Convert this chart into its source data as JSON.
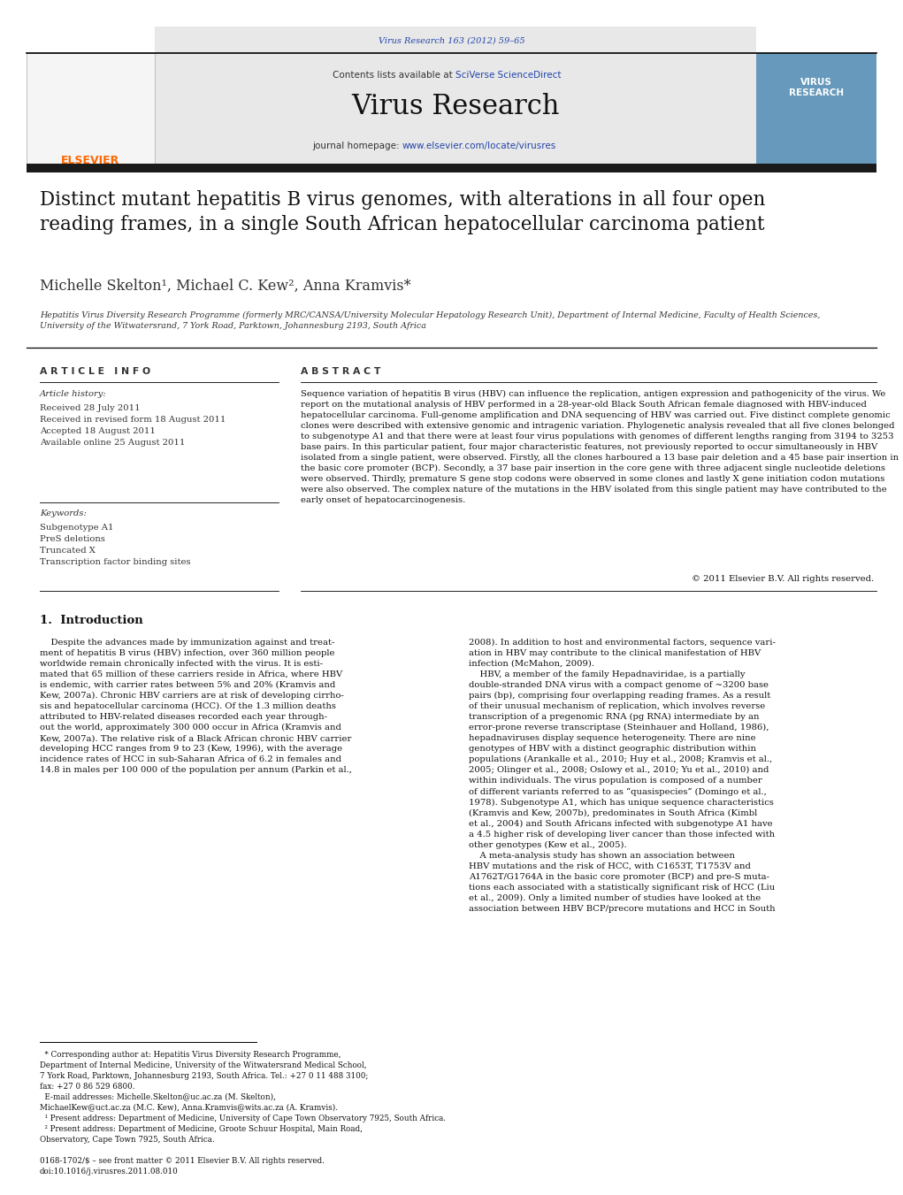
{
  "page_width": 10.21,
  "page_height": 13.51,
  "bg_color": "#ffffff",
  "journal_ref": "Virus Research 163 (2012) 59–65",
  "journal_ref_color": "#2244aa",
  "header_bg": "#e8e8e8",
  "contents_text": "Contents lists available at ",
  "sciverse_text": "SciVerse ScienceDirect",
  "sciverse_color": "#2244aa",
  "journal_name": "Virus Research",
  "journal_homepage_text": "journal homepage: ",
  "journal_url": "www.elsevier.com/locate/virusres",
  "journal_url_color": "#2244aa",
  "elsevier_color": "#FF6600",
  "dark_bar_color": "#1a1a1a",
  "title": "Distinct mutant hepatitis B virus genomes, with alterations in all four open\nreading frames, in a single South African hepatocellular carcinoma patient",
  "authors": "Michelle Skelton¹, Michael C. Kew², Anna Kramvis*",
  "affiliation": "Hepatitis Virus Diversity Research Programme (formerly MRC/CANSA/University Molecular Hepatology Research Unit), Department of Internal Medicine, Faculty of Health Sciences,\nUniversity of the Witwatersrand, 7 York Road, Parktown, Johannesburg 2193, South Africa",
  "article_info_header": "A R T I C L E   I N F O",
  "abstract_header": "A B S T R A C T",
  "article_history_label": "Article history:",
  "article_history": "Received 28 July 2011\nReceived in revised form 18 August 2011\nAccepted 18 August 2011\nAvailable online 25 August 2011",
  "keywords_label": "Keywords:",
  "keywords": "Subgenotype A1\nPreS deletions\nTruncated X\nTranscription factor binding sites",
  "abstract_text": "Sequence variation of hepatitis B virus (HBV) can influence the replication, antigen expression and pathogenicity of the virus. We report on the mutational analysis of HBV performed in a 28-year-old Black South African female diagnosed with HBV-induced hepatocellular carcinoma. Full-genome amplification and DNA sequencing of HBV was carried out. Five distinct complete genomic clones were described with extensive genomic and intragenic variation. Phylogenetic analysis revealed that all five clones belonged to subgenotype A1 and that there were at least four virus populations with genomes of different lengths ranging from 3194 to 3253 base pairs. In this particular patient, four major characteristic features, not previously reported to occur simultaneously in HBV isolated from a single patient, were observed. Firstly, all the clones harboured a 13 base pair deletion and a 45 base pair insertion in the basic core promoter (BCP). Secondly, a 37 base pair insertion in the core gene with three adjacent single nucleotide deletions were observed. Thirdly, premature S gene stop codons were observed in some clones and lastly X gene initiation codon mutations were also observed. The complex nature of the mutations in the HBV isolated from this single patient may have contributed to the early onset of hepatocarcinogenesis.",
  "copyright": "© 2011 Elsevier B.V. All rights reserved.",
  "section1_title": "1.  Introduction",
  "section1_col1": "    Despite the advances made by immunization against and treat-\nment of hepatitis B virus (HBV) infection, over 360 million people\nworldwide remain chronically infected with the virus. It is esti-\nmated that 65 million of these carriers reside in Africa, where HBV\nis endemic, with carrier rates between 5% and 20% (Kramvis and\nKew, 2007a). Chronic HBV carriers are at risk of developing cirrho-\nsis and hepatocellular carcinoma (HCC). Of the 1.3 million deaths\nattributed to HBV-related diseases recorded each year through-\nout the world, approximately 300 000 occur in Africa (Kramvis and\nKew, 2007a). The relative risk of a Black African chronic HBV carrier\ndeveloping HCC ranges from 9 to 23 (Kew, 1996), with the average\nincidence rates of HCC in sub-Saharan Africa of 6.2 in females and\n14.8 in males per 100 000 of the population per annum (Parkin et al.,",
  "section1_col2": "2008). In addition to host and environmental factors, sequence vari-\nation in HBV may contribute to the clinical manifestation of HBV\ninfection (McMahon, 2009).\n    HBV, a member of the family Hepadnaviridae, is a partially\ndouble-stranded DNA virus with a compact genome of ~3200 base\npairs (bp), comprising four overlapping reading frames. As a result\nof their unusual mechanism of replication, which involves reverse\ntranscription of a pregenomic RNA (pg RNA) intermediate by an\nerror-prone reverse transcriptase (Steinhauer and Holland, 1986),\nhepadnaviruses display sequence heterogeneity. There are nine\ngenotypes of HBV with a distinct geographic distribution within\npopulations (Arankalle et al., 2010; Huy et al., 2008; Kramvis et al.,\n2005; Olinger et al., 2008; Oslowy et al., 2010; Yu et al., 2010) and\nwithin individuals. The virus population is composed of a number\nof different variants referred to as “quasispecies” (Domingo et al.,\n1978). Subgenotype A1, which has unique sequence characteristics\n(Kramvis and Kew, 2007b), predominates in South Africa (Kimbl\net al., 2004) and South Africans infected with subgenotype A1 have\na 4.5 higher risk of developing liver cancer than those infected with\nother genotypes (Kew et al., 2005).\n    A meta-analysis study has shown an association between\nHBV mutations and the risk of HCC, with C1653T, T1753V and\nA1762T/G1764A in the basic core promoter (BCP) and pre-S muta-\ntions each associated with a statistically significant risk of HCC (Liu\net al., 2009). Only a limited number of studies have looked at the\nassociation between HBV BCP/precore mutations and HCC in South",
  "footnotes": "  * Corresponding author at: Hepatitis Virus Diversity Research Programme,\nDepartment of Internal Medicine, University of the Witwatersrand Medical School,\n7 York Road, Parktown, Johannesburg 2193, South Africa. Tel.: +27 0 11 488 3100;\nfax: +27 0 86 529 6800.\n  E-mail addresses: Michelle.Skelton@uc.ac.za (M. Skelton),\nMichaelKew@uct.ac.za (M.C. Kew), Anna.Kramvis@wits.ac.za (A. Kramvis).\n  ¹ Present address: Department of Medicine, University of Cape Town Observatory 7925, South Africa.\n  ² Present address: Department of Medicine, Groote Schuur Hospital, Main Road,\nObservatory, Cape Town 7925, South Africa.",
  "bottom_text": "0168-1702/$ – see front matter © 2011 Elsevier B.V. All rights reserved.\ndoi:10.1016/j.virusres.2011.08.010"
}
